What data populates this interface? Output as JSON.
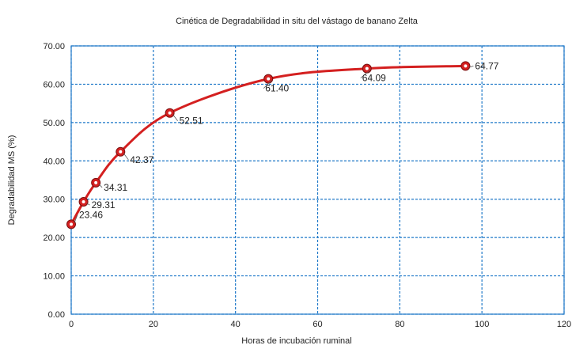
{
  "chart_data": {
    "type": "line",
    "title": "Cinética de Degradabilidad in situ del vástago de banano Zelta",
    "xlabel": "Horas de incubación ruminal",
    "ylabel": "Degradabilidad MS (%)",
    "xlim": [
      0,
      120
    ],
    "ylim": [
      0,
      70
    ],
    "xticks": [
      0,
      20,
      40,
      60,
      80,
      100,
      120
    ],
    "yticks": [
      "0.00",
      "10.00",
      "20.00",
      "30.00",
      "40.00",
      "50.00",
      "60.00",
      "70.00"
    ],
    "grid": true,
    "series": [
      {
        "color": "#d42020",
        "x": [
          0,
          3,
          6,
          12,
          24,
          48,
          72,
          96
        ],
        "y": [
          23.46,
          29.31,
          34.31,
          42.37,
          52.51,
          61.4,
          64.09,
          64.77
        ],
        "labels": [
          "23.46",
          "29.31",
          "34.31",
          "42.37",
          "52.51",
          "61.40",
          "64.09",
          "64.77"
        ]
      }
    ]
  }
}
